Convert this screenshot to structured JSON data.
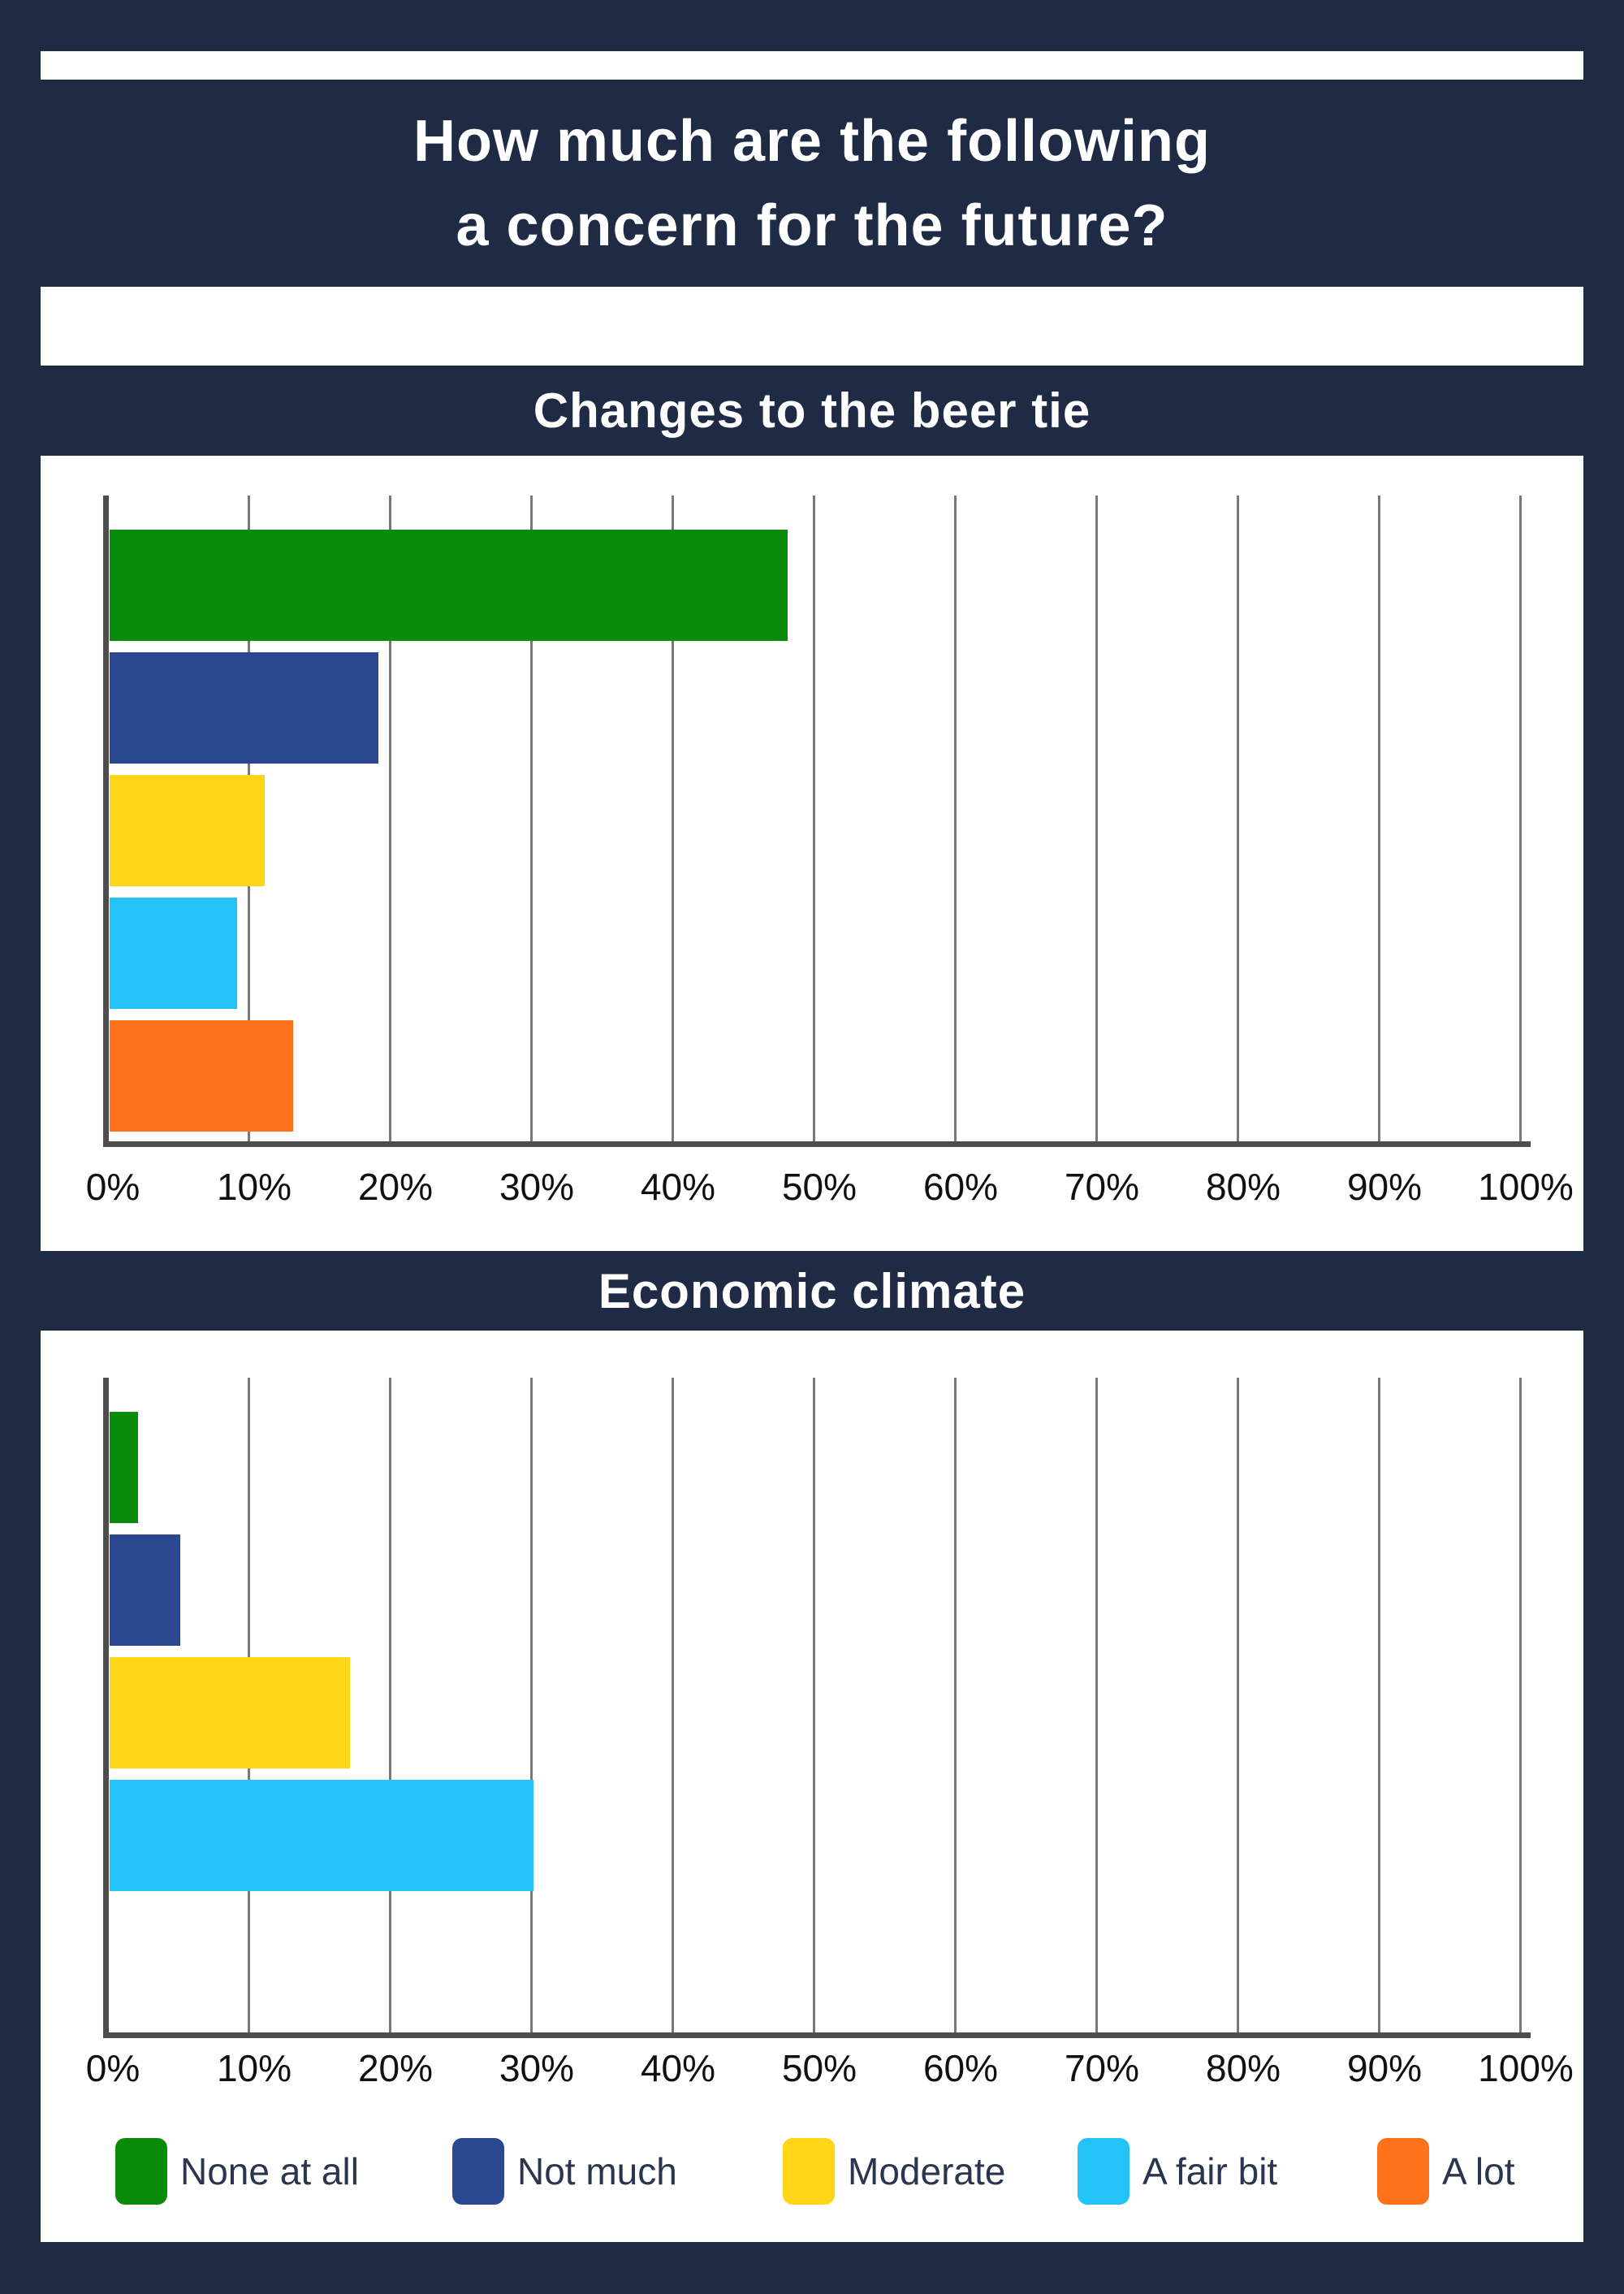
{
  "page": {
    "title_line1": "How much are the following",
    "title_line2": "a concern for the future?",
    "background_color": "#1F2A44",
    "panel_color": "#FFFFFF"
  },
  "legend": {
    "items": [
      {
        "label": "None at all",
        "color": "#0A8C0A"
      },
      {
        "label": "Not much",
        "color": "#2A4890"
      },
      {
        "label": "Moderate",
        "color": "#FFD517"
      },
      {
        "label": "A fair bit",
        "color": "#22C4F8"
      },
      {
        "label": "A lot",
        "color": "#FD711A"
      }
    ]
  },
  "chart_data": [
    {
      "type": "bar",
      "orientation": "horizontal",
      "title": "Changes to the beer tie",
      "categories": [
        "None at all",
        "Not much",
        "Moderate",
        "A fair bit",
        "A lot"
      ],
      "values": [
        48,
        19,
        11,
        9,
        13
      ],
      "unit": "%",
      "xlim": [
        0,
        100
      ],
      "x_ticks": [
        "0%",
        "10%",
        "20%",
        "30%",
        "40%",
        "50%",
        "60%",
        "70%",
        "80%",
        "90%",
        "100%"
      ],
      "grid": true,
      "legend_position": "none",
      "bar_colors": [
        "#0A8C0A",
        "#2A4890",
        "#FFD517",
        "#22C4F8",
        "#FD711A"
      ]
    },
    {
      "type": "bar",
      "orientation": "horizontal",
      "title": "Economic climate",
      "categories": [
        "None at all",
        "Not much",
        "Moderate",
        "A fair bit",
        "A lot"
      ],
      "values": [
        2,
        5,
        17,
        30,
        0
      ],
      "unit": "%",
      "xlim": [
        0,
        100
      ],
      "x_ticks": [
        "0%",
        "10%",
        "20%",
        "30%",
        "40%",
        "50%",
        "60%",
        "70%",
        "80%",
        "90%",
        "100%"
      ],
      "grid": true,
      "legend_position": "bottom",
      "bar_colors": [
        "#0A8C0A",
        "#2A4890",
        "#FFD517",
        "#22C4F8",
        "#FD711A"
      ]
    }
  ],
  "axis_style": {
    "gridline_color": "#787878",
    "axis_color": "#4D4D4D",
    "tick_label_color": "#101010"
  }
}
